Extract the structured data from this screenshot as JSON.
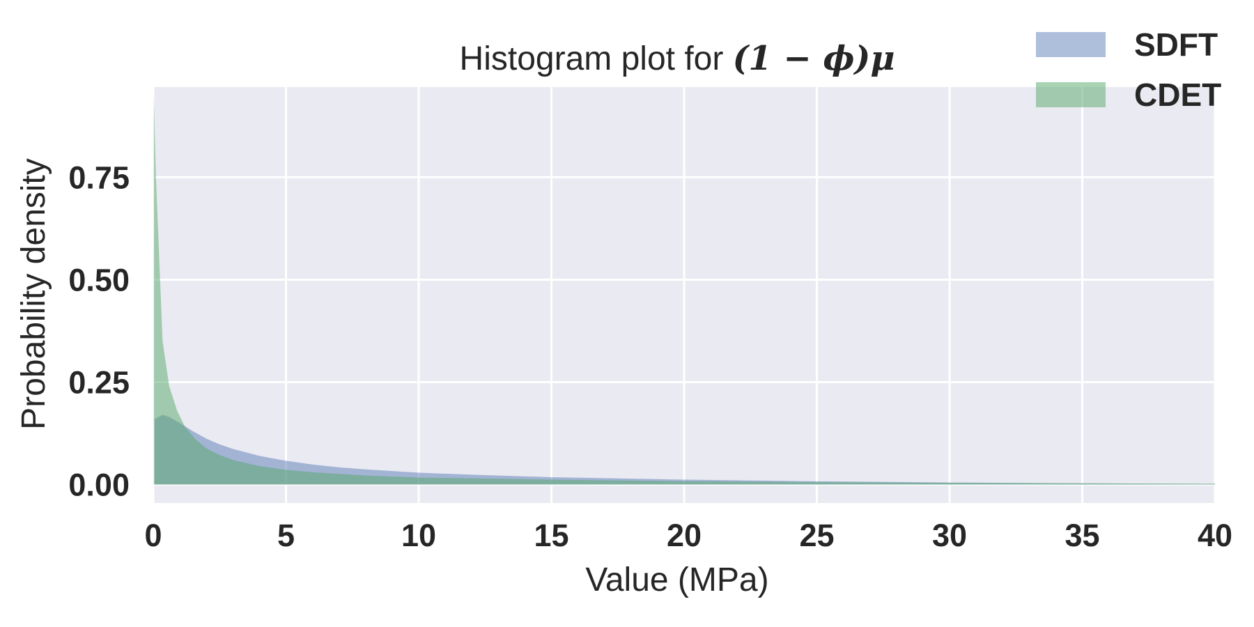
{
  "chart_data": {
    "type": "area",
    "title_prefix": "Histogram plot for ",
    "title_math": "(1 − ϕ)μ",
    "xlabel": "Value (MPa)",
    "ylabel": "Probability density",
    "xlim": [
      0,
      40
    ],
    "ylim": [
      -0.045,
      0.97
    ],
    "x_ticks": [
      0,
      5,
      10,
      15,
      20,
      25,
      30,
      35,
      40
    ],
    "x_tick_labels": [
      "0",
      "5",
      "10",
      "15",
      "20",
      "25",
      "30",
      "35",
      "40"
    ],
    "y_ticks": [
      0.0,
      0.25,
      0.5,
      0.75
    ],
    "y_tick_labels": [
      "0.00",
      "0.25",
      "0.50",
      "0.75"
    ],
    "grid": true,
    "legend_position": "top-right",
    "plot_background": "#eaeaf2",
    "series": [
      {
        "name": "SDFT",
        "color": "#4c72b0",
        "alpha": 0.45,
        "x": [
          0.05,
          0.35,
          0.6,
          1.0,
          1.5,
          2.0,
          2.5,
          3.0,
          4.0,
          5.0,
          6.0,
          7.0,
          8.0,
          10.0,
          12.0,
          15.0,
          20.0,
          25.0,
          30.0,
          35.0,
          40.0
        ],
        "y": [
          0.16,
          0.17,
          0.165,
          0.15,
          0.13,
          0.112,
          0.098,
          0.087,
          0.07,
          0.058,
          0.049,
          0.042,
          0.037,
          0.029,
          0.024,
          0.018,
          0.012,
          0.008,
          0.005,
          0.003,
          0.002
        ]
      },
      {
        "name": "CDET",
        "color": "#55a868",
        "alpha": 0.5,
        "x": [
          0.02,
          0.1,
          0.35,
          0.6,
          0.9,
          1.2,
          1.6,
          2.0,
          2.5,
          3.0,
          4.0,
          5.0,
          6.0,
          8.0,
          10.0,
          15.0,
          20.0,
          25.0,
          30.0,
          35.0,
          40.0
        ],
        "y": [
          0.95,
          0.75,
          0.35,
          0.24,
          0.18,
          0.14,
          0.11,
          0.088,
          0.072,
          0.06,
          0.045,
          0.036,
          0.03,
          0.022,
          0.017,
          0.012,
          0.008,
          0.006,
          0.004,
          0.003,
          0.002
        ]
      }
    ]
  }
}
